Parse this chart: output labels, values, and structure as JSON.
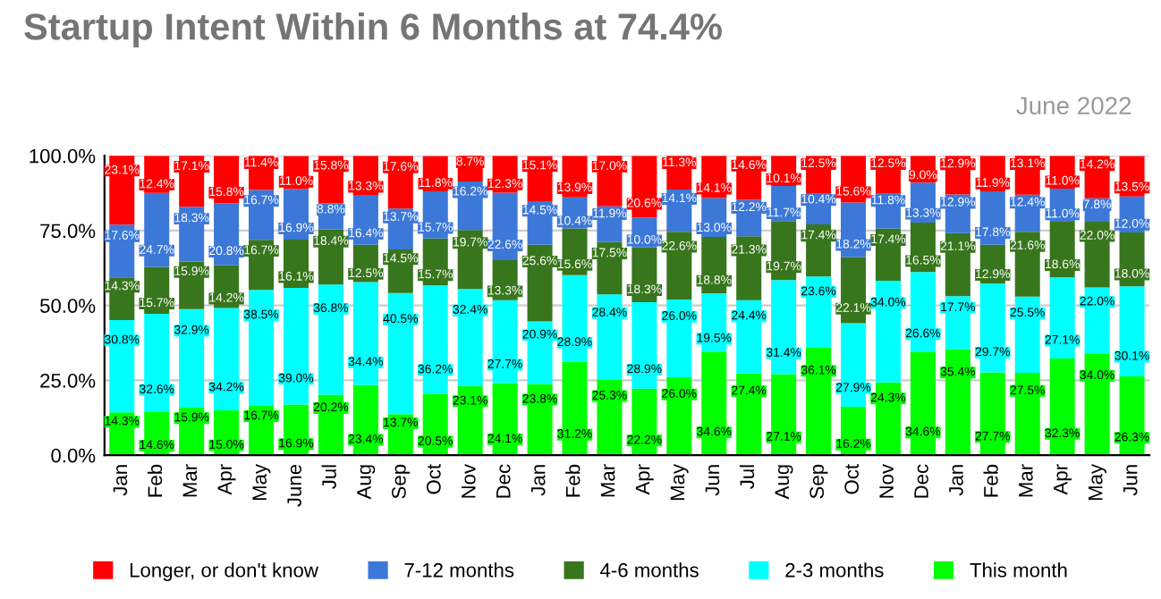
{
  "chart_data": {
    "type": "bar",
    "stacked": true,
    "title": "Startup Intent Within 6 Months at 74.4%",
    "subtitle": "June 2022",
    "categories": [
      "Jan",
      "Feb",
      "Mar",
      "Apr",
      "May",
      "June",
      "Jul",
      "Aug",
      "Sep",
      "Oct",
      "Nov",
      "Dec",
      "Jan",
      "Feb",
      "Mar",
      "Apr",
      "May",
      "Jun",
      "Jul",
      "Aug",
      "Sep",
      "Oct",
      "Nov",
      "Dec",
      "Jan",
      "Feb",
      "Mar",
      "Apr",
      "May",
      "Jun"
    ],
    "series": [
      {
        "name": "This month",
        "color": "#00ff00",
        "values": [
          14.3,
          14.6,
          15.9,
          15.0,
          16.7,
          16.9,
          20.2,
          23.4,
          13.7,
          20.5,
          23.1,
          24.1,
          23.8,
          31.2,
          25.3,
          22.2,
          26.0,
          34.6,
          27.4,
          27.1,
          36.1,
          16.2,
          24.3,
          34.6,
          35.4,
          27.7,
          27.5,
          32.3,
          34.0,
          26.3
        ],
        "value_labels": [
          "14.3%",
          "14.6%",
          "15.9%",
          "15.0%",
          "16.7%",
          "16.9%",
          "20.2%",
          "23.4%",
          "13.7%",
          "20.5%",
          "23.1%",
          "24.1%",
          "23.8%",
          "31.2%",
          "25.3%",
          "22.2%",
          "26.0%",
          "34.6%",
          "27.4%",
          "27.1%",
          "36.1%",
          "16.2%",
          "24.3%",
          "34.6%",
          "35.4%",
          "27.7%",
          "27.5%",
          "32.3%",
          "34.0%",
          "26.3%"
        ]
      },
      {
        "name": "2-3 months",
        "color": "#00ffff",
        "values": [
          30.8,
          32.6,
          32.9,
          34.2,
          38.5,
          39.0,
          36.8,
          34.4,
          40.5,
          36.2,
          32.4,
          27.7,
          20.9,
          28.9,
          28.4,
          28.9,
          26.0,
          19.5,
          24.4,
          31.4,
          23.6,
          27.9,
          34.0,
          26.6,
          17.7,
          29.7,
          25.5,
          27.1,
          22.0,
          30.1
        ],
        "value_labels": [
          "30.8%",
          "32.6%",
          "32.9%",
          "34.2%",
          "38.5%",
          "39.0%",
          "36.8%",
          "34.4%",
          "40.5%",
          "36.2%",
          "32.4%",
          "27.7%",
          "20.9%",
          "28.9%",
          "28.4%",
          "28.9%",
          "26.0%",
          "19.5%",
          "24.4%",
          "31.4%",
          "23.6%",
          "27.9%",
          "34.0%",
          "26.6%",
          "17.7%",
          "29.7%",
          "25.5%",
          "27.1%",
          "22.0%",
          "30.1%"
        ]
      },
      {
        "name": "4-6 months",
        "color": "#38761d",
        "values": [
          14.3,
          15.7,
          15.9,
          14.2,
          16.7,
          16.1,
          18.4,
          12.5,
          14.5,
          15.7,
          19.7,
          13.3,
          25.6,
          15.6,
          17.5,
          18.3,
          22.6,
          18.8,
          21.3,
          19.7,
          17.4,
          22.1,
          17.4,
          16.5,
          21.1,
          12.9,
          21.6,
          18.6,
          22.0,
          18.0
        ],
        "value_labels": [
          "14.3%",
          "15.7%",
          "15.9%",
          "14.2%",
          "16.7%",
          "16.1%",
          "18.4%",
          "12.5%",
          "14.5%",
          "15.7%",
          "19.7%",
          "13.3%",
          "25.6%",
          "15.6%",
          "17.5%",
          "18.3%",
          "22.6%",
          "18.8%",
          "21.3%",
          "19.7%",
          "17.4%",
          "22.1%",
          "17.4%",
          "16.5%",
          "21.1%",
          "12.9%",
          "21.6%",
          "18.6%",
          "22.0%",
          "18.0%"
        ]
      },
      {
        "name": "7-12 months",
        "color": "#3c78d8",
        "values": [
          17.6,
          24.7,
          18.3,
          20.8,
          16.7,
          16.9,
          8.8,
          16.4,
          13.7,
          15.7,
          16.2,
          22.6,
          14.5,
          10.4,
          11.9,
          10.0,
          14.1,
          13.0,
          12.2,
          11.7,
          10.4,
          18.2,
          11.8,
          13.3,
          12.9,
          17.8,
          12.4,
          11.0,
          7.8,
          12.0
        ],
        "value_labels": [
          "17.6%",
          "24.7%",
          "18.3%",
          "20.8%",
          "16.7%",
          "16.9%",
          "8.8%",
          "16.4%",
          "13.7%",
          "15.7%",
          "16.2%",
          "22.6%",
          "14.5%",
          "10.4%",
          "11.9%",
          "10.0%",
          "14.1%",
          "13.0%",
          "12.2%",
          "11.7%",
          "10.4%",
          "18.2%",
          "11.8%",
          "13.3%",
          "12.9%",
          "17.8%",
          "12.4%",
          "11.0%",
          "7.8%",
          "12.0%"
        ]
      },
      {
        "name": "Longer, or don't know",
        "color": "#ff0000",
        "values": [
          23.1,
          12.4,
          17.1,
          15.8,
          11.4,
          11.0,
          15.8,
          13.3,
          17.6,
          11.8,
          8.7,
          12.3,
          15.1,
          13.9,
          17.0,
          20.6,
          11.3,
          14.1,
          14.6,
          10.1,
          12.5,
          15.6,
          12.5,
          9.0,
          12.9,
          11.9,
          13.1,
          11.0,
          14.2,
          13.5
        ],
        "value_labels": [
          "23.1%",
          "12.4%",
          "17.1%",
          "15.8%",
          "11.4%",
          "11.0%",
          "15.8%",
          "13.3%",
          "17.6%",
          "11.8%",
          "8.7%",
          "12.3%",
          "15.1%",
          "13.9%",
          "17.0%",
          "20.6%",
          "11.3%",
          "14.1%",
          "14.6%",
          "10.1%",
          "12.5%",
          "15.6%",
          "12.5%",
          "9.0%",
          "12.9%",
          "11.9%",
          "13.1%",
          "11.0%",
          "14.2%",
          "13.5%"
        ]
      }
    ],
    "ylim": [
      0,
      100
    ],
    "yticks": [
      {
        "value": 0,
        "label": "0.0%"
      },
      {
        "value": 25,
        "label": "25.0%"
      },
      {
        "value": 50,
        "label": "50.0%"
      },
      {
        "value": 75,
        "label": "75.0%"
      },
      {
        "value": 100,
        "label": "100.0%"
      }
    ],
    "grid": "y",
    "legend": "bottom"
  }
}
